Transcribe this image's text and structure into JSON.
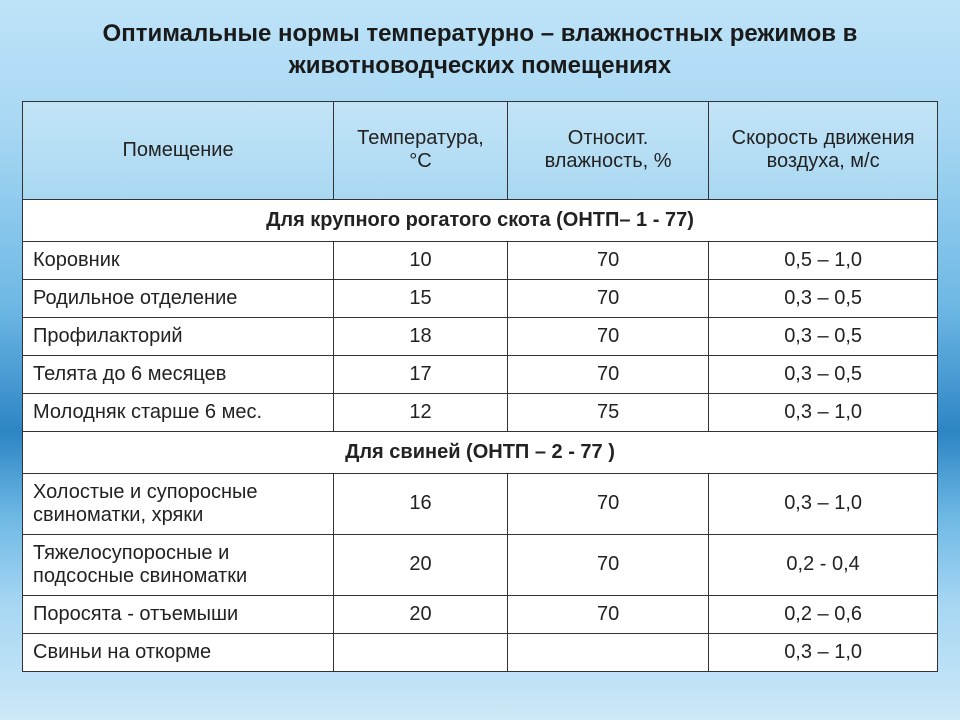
{
  "title": "Оптимальные нормы температурно – влажностных режимов в животноводческих помещениях",
  "columns": [
    "Помещение",
    "Температура, °С",
    "Относит. влажность, %",
    "Скорость движения воздуха, м/с"
  ],
  "sections": [
    {
      "heading": "Для крупного рогатого скота (ОНТП– 1 - 77)",
      "rows": [
        {
          "label": "Коровник",
          "temp": "10",
          "hum": "70",
          "vel": "0,5 – 1,0"
        },
        {
          "label": "Родильное отделение",
          "temp": "15",
          "hum": "70",
          "vel": "0,3 – 0,5"
        },
        {
          "label": "Профилакторий",
          "temp": "18",
          "hum": "70",
          "vel": "0,3 – 0,5"
        },
        {
          "label": "Телята до 6 месяцев",
          "temp": "17",
          "hum": "70",
          "vel": "0,3 – 0,5"
        },
        {
          "label": "Молодняк старше 6 мес.",
          "temp": "12",
          "hum": "75",
          "vel": "0,3 – 1,0"
        }
      ]
    },
    {
      "heading": "Для свиней (ОНТП – 2 - 77 )",
      "rows": [
        {
          "label": "Холостые и супоросные свиноматки, хряки",
          "temp": "16",
          "hum": "70",
          "vel": "0,3 – 1,0"
        },
        {
          "label": "Тяжелосупоросные и подсосные свиноматки",
          "temp": "20",
          "hum": "70",
          "vel": "0,2 - 0,4"
        },
        {
          "label": "Поросята - отъемыши",
          "temp": "20",
          "hum": "70",
          "vel": "0,2 – 0,6"
        },
        {
          "label": "Свиньи на откорме",
          "temp": "",
          "hum": "",
          "vel": "0,3 – 1,0"
        }
      ]
    }
  ],
  "style": {
    "title_fontsize": 24,
    "header_fontsize": 20,
    "cell_fontsize": 20,
    "border_color": "#333333",
    "cell_bg": "#ffffff",
    "gradient": [
      "#bee3f8",
      "#a7d7f3",
      "#6fb9e5",
      "#2d85c4",
      "#6fb9e5",
      "#a7d7f3",
      "#cde8f7"
    ]
  }
}
